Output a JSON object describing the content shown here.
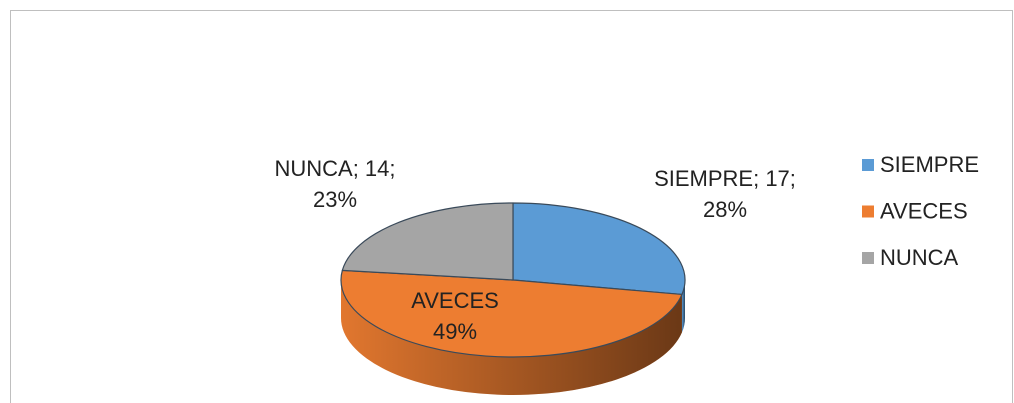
{
  "chart_data": {
    "type": "pie3d",
    "categories": [
      "SIEMPRE",
      "AVECES",
      "NUNCA"
    ],
    "values": [
      28,
      49,
      23
    ],
    "value_labels": [
      [
        "SIEMPRE; 17;",
        "28%"
      ],
      [
        "AVECES",
        "49%"
      ],
      [
        "NUNCA; 14;",
        "23%"
      ]
    ],
    "colors": [
      "#5b9bd5",
      "#ed7d31",
      "#a5a5a5"
    ],
    "legend": "right"
  }
}
